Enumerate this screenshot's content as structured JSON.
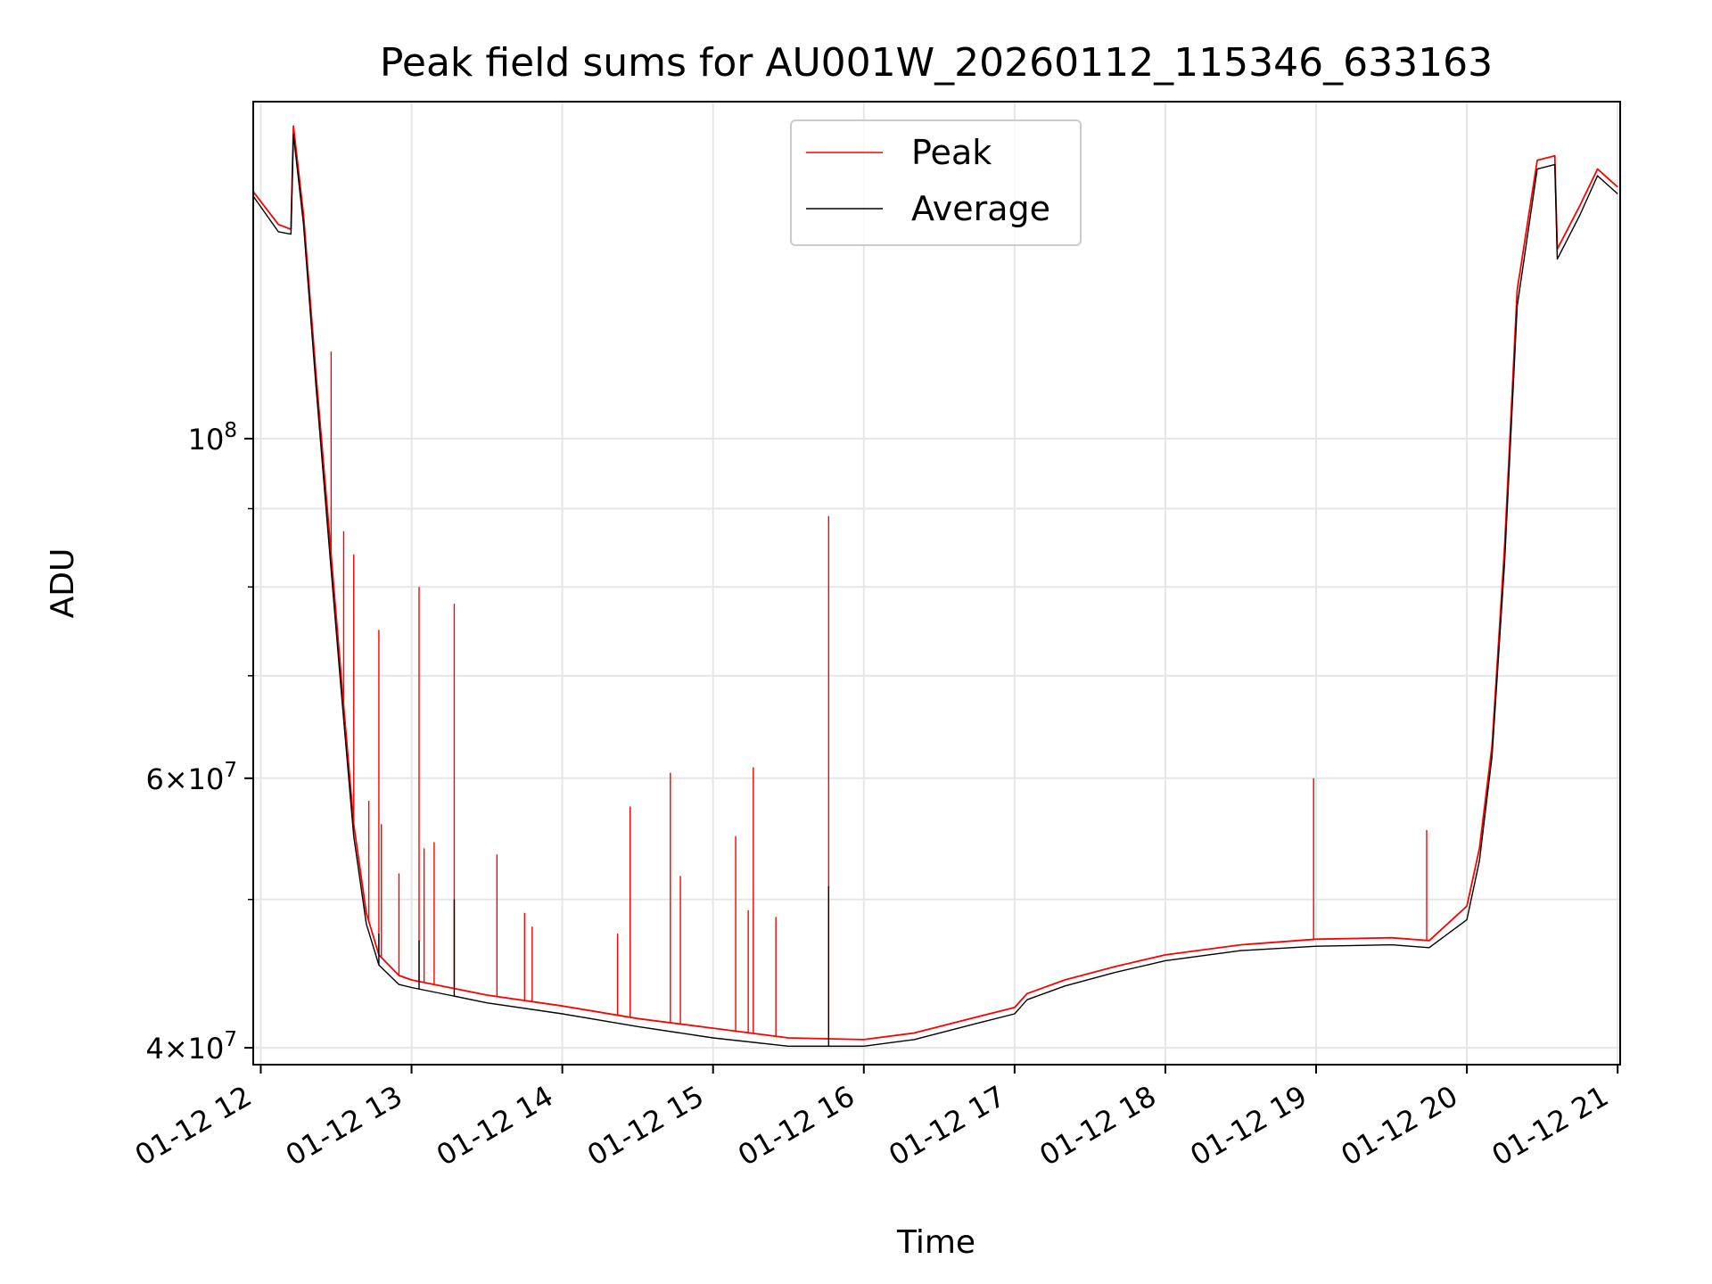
{
  "chart_data": {
    "type": "line",
    "title": "Peak field sums for AU001W_20260112_115346_633163",
    "xlabel": "Time",
    "ylabel": "ADU",
    "y_scale": "log",
    "grid": true,
    "legend_position": "top-center",
    "xlim": [
      "2026-01-12 11:57",
      "2026-01-12 21:01"
    ],
    "ylim": [
      39000000,
      166000000
    ],
    "x_ticks": [
      {
        "t": "2026-01-12 12:00",
        "label": "01-12 12"
      },
      {
        "t": "2026-01-12 13:00",
        "label": "01-12 13"
      },
      {
        "t": "2026-01-12 14:00",
        "label": "01-12 14"
      },
      {
        "t": "2026-01-12 15:00",
        "label": "01-12 15"
      },
      {
        "t": "2026-01-12 16:00",
        "label": "01-12 16"
      },
      {
        "t": "2026-01-12 17:00",
        "label": "01-12 17"
      },
      {
        "t": "2026-01-12 18:00",
        "label": "01-12 18"
      },
      {
        "t": "2026-01-12 19:00",
        "label": "01-12 19"
      },
      {
        "t": "2026-01-12 20:00",
        "label": "01-12 20"
      },
      {
        "t": "2026-01-12 21:00",
        "label": "01-12 21"
      }
    ],
    "y_ticks_major": [
      {
        "value": 40000000,
        "base": "4×10",
        "exp": "7"
      },
      {
        "value": 60000000,
        "base": "6×10",
        "exp": "7"
      },
      {
        "value": 100000000,
        "base": "10",
        "exp": "8"
      }
    ],
    "y_ticks_minor": [
      50000000,
      70000000,
      80000000,
      90000000
    ],
    "series": [
      {
        "name": "Peak",
        "color": "#ff0000",
        "baseline": [
          [
            "2026-01-12 11:57",
            145000000
          ],
          [
            "2026-01-12 12:07",
            138000000
          ],
          [
            "2026-01-12 12:12",
            137000000
          ],
          [
            "2026-01-12 12:13",
            160000000
          ],
          [
            "2026-01-12 12:17",
            140000000
          ],
          [
            "2026-01-12 12:22",
            110000000
          ],
          [
            "2026-01-12 12:27",
            88000000
          ],
          [
            "2026-01-12 12:32",
            70000000
          ],
          [
            "2026-01-12 12:37",
            56000000
          ],
          [
            "2026-01-12 12:42",
            49000000
          ],
          [
            "2026-01-12 12:47",
            46000000
          ],
          [
            "2026-01-12 12:55",
            44600000
          ],
          [
            "2026-01-12 13:00",
            44300000
          ],
          [
            "2026-01-12 13:15",
            43800000
          ],
          [
            "2026-01-12 13:30",
            43300000
          ],
          [
            "2026-01-12 14:00",
            42600000
          ],
          [
            "2026-01-12 14:30",
            41800000
          ],
          [
            "2026-01-12 15:00",
            41200000
          ],
          [
            "2026-01-12 15:30",
            40600000
          ],
          [
            "2026-01-12 16:00",
            40500000
          ],
          [
            "2026-01-12 16:20",
            40900000
          ],
          [
            "2026-01-12 16:45",
            41900000
          ],
          [
            "2026-01-12 17:00",
            42500000
          ],
          [
            "2026-01-12 17:05",
            43400000
          ],
          [
            "2026-01-12 17:20",
            44300000
          ],
          [
            "2026-01-12 17:40",
            45200000
          ],
          [
            "2026-01-12 18:00",
            46000000
          ],
          [
            "2026-01-12 18:30",
            46700000
          ],
          [
            "2026-01-12 19:00",
            47100000
          ],
          [
            "2026-01-12 19:30",
            47200000
          ],
          [
            "2026-01-12 19:45",
            47000000
          ],
          [
            "2026-01-12 20:00",
            49500000
          ],
          [
            "2026-01-12 20:05",
            54000000
          ],
          [
            "2026-01-12 20:10",
            63000000
          ],
          [
            "2026-01-12 20:15",
            85000000
          ],
          [
            "2026-01-12 20:20",
            125000000
          ],
          [
            "2026-01-12 20:28",
            152000000
          ],
          [
            "2026-01-12 20:35",
            153000000
          ],
          [
            "2026-01-12 20:36",
            133000000
          ],
          [
            "2026-01-12 20:45",
            142000000
          ],
          [
            "2026-01-12 20:52",
            150000000
          ],
          [
            "2026-01-12 21:00",
            146000000
          ]
        ],
        "spikes": [
          [
            "2026-01-12 12:28",
            114000000
          ],
          [
            "2026-01-12 12:33",
            87000000
          ],
          [
            "2026-01-12 12:37",
            84000000
          ],
          [
            "2026-01-12 12:43",
            58000000
          ],
          [
            "2026-01-12 12:47",
            75000000
          ],
          [
            "2026-01-12 12:48",
            56000000
          ],
          [
            "2026-01-12 12:55",
            52000000
          ],
          [
            "2026-01-12 13:03",
            80000000
          ],
          [
            "2026-01-12 13:05",
            54000000
          ],
          [
            "2026-01-12 13:09",
            54500000
          ],
          [
            "2026-01-12 13:17",
            78000000
          ],
          [
            "2026-01-12 13:34",
            53500000
          ],
          [
            "2026-01-12 13:45",
            49000000
          ],
          [
            "2026-01-12 13:48",
            48000000
          ],
          [
            "2026-01-12 14:22",
            47500000
          ],
          [
            "2026-01-12 14:27",
            57500000
          ],
          [
            "2026-01-12 14:43",
            60500000
          ],
          [
            "2026-01-12 14:47",
            51800000
          ],
          [
            "2026-01-12 15:09",
            55000000
          ],
          [
            "2026-01-12 15:14",
            49200000
          ],
          [
            "2026-01-12 15:16",
            61000000
          ],
          [
            "2026-01-12 15:25",
            48700000
          ],
          [
            "2026-01-12 15:46",
            89000000
          ],
          [
            "2026-01-12 18:59",
            60000000
          ],
          [
            "2026-01-12 19:44",
            55500000
          ]
        ]
      },
      {
        "name": "Average",
        "color": "#000000",
        "baseline": [
          [
            "2026-01-12 11:57",
            144000000
          ],
          [
            "2026-01-12 12:07",
            136500000
          ],
          [
            "2026-01-12 12:12",
            136000000
          ],
          [
            "2026-01-12 12:13",
            158000000
          ],
          [
            "2026-01-12 12:17",
            138000000
          ],
          [
            "2026-01-12 12:22",
            108000000
          ],
          [
            "2026-01-12 12:27",
            86000000
          ],
          [
            "2026-01-12 12:32",
            68500000
          ],
          [
            "2026-01-12 12:37",
            55000000
          ],
          [
            "2026-01-12 12:42",
            48200000
          ],
          [
            "2026-01-12 12:47",
            45300000
          ],
          [
            "2026-01-12 12:55",
            44000000
          ],
          [
            "2026-01-12 13:00",
            43800000
          ],
          [
            "2026-01-12 13:15",
            43300000
          ],
          [
            "2026-01-12 13:30",
            42800000
          ],
          [
            "2026-01-12 14:00",
            42100000
          ],
          [
            "2026-01-12 14:30",
            41300000
          ],
          [
            "2026-01-12 15:00",
            40600000
          ],
          [
            "2026-01-12 15:30",
            40100000
          ],
          [
            "2026-01-12 16:00",
            40100000
          ],
          [
            "2026-01-12 16:20",
            40500000
          ],
          [
            "2026-01-12 16:45",
            41500000
          ],
          [
            "2026-01-12 17:00",
            42100000
          ],
          [
            "2026-01-12 17:05",
            43000000
          ],
          [
            "2026-01-12 17:20",
            43900000
          ],
          [
            "2026-01-12 17:40",
            44800000
          ],
          [
            "2026-01-12 18:00",
            45600000
          ],
          [
            "2026-01-12 18:30",
            46300000
          ],
          [
            "2026-01-12 19:00",
            46600000
          ],
          [
            "2026-01-12 19:30",
            46700000
          ],
          [
            "2026-01-12 19:45",
            46500000
          ],
          [
            "2026-01-12 20:00",
            48500000
          ],
          [
            "2026-01-12 20:05",
            53000000
          ],
          [
            "2026-01-12 20:10",
            62000000
          ],
          [
            "2026-01-12 20:15",
            83000000
          ],
          [
            "2026-01-12 20:20",
            122000000
          ],
          [
            "2026-01-12 20:28",
            150000000
          ],
          [
            "2026-01-12 20:35",
            151000000
          ],
          [
            "2026-01-12 20:36",
            131000000
          ],
          [
            "2026-01-12 20:45",
            140000000
          ],
          [
            "2026-01-12 20:52",
            148500000
          ],
          [
            "2026-01-12 21:00",
            144500000
          ]
        ],
        "spikes": [
          [
            "2026-01-12 12:47",
            47500000
          ],
          [
            "2026-01-12 13:03",
            47000000
          ],
          [
            "2026-01-12 13:17",
            50000000
          ],
          [
            "2026-01-12 15:46",
            51000000
          ]
        ]
      }
    ]
  }
}
